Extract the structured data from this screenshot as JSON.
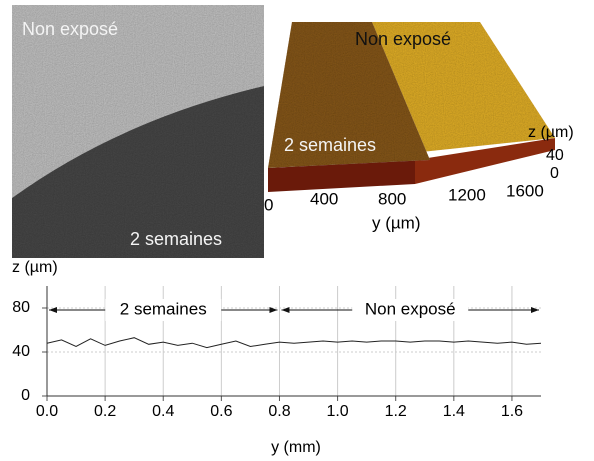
{
  "images": [
    {
      "labels": [
        "Non exposé",
        "2 semaines"
      ]
    },
    {
      "labels": [
        "Non exposé",
        "2 semaines"
      ],
      "z_label": "z (µm)",
      "z_ticks": [
        "40",
        "0"
      ],
      "y_label": "y (µm)",
      "y_ticks": [
        "0",
        "400",
        "800",
        "1200",
        "1600"
      ]
    }
  ],
  "chart_data": {
    "type": "line",
    "ylabel": "z (µm)",
    "xlabel": "y (mm)",
    "xlim": [
      0,
      1.7
    ],
    "ylim": [
      0,
      100
    ],
    "xticks": [
      {
        "value": 0,
        "label": "0.0"
      },
      0.2,
      0.4,
      0.6,
      0.8,
      {
        "value": 1,
        "label": "1.0"
      },
      1.2,
      1.4,
      1.6
    ],
    "yticks": [
      0,
      40,
      80
    ],
    "grid": true,
    "annotations": [
      {
        "text": "2 semaines",
        "range": [
          0,
          0.8
        ]
      },
      {
        "text": "Non exposé",
        "range": [
          0.8,
          1.7
        ]
      }
    ],
    "series": [
      {
        "color": "#222222",
        "x": [
          0,
          0.05,
          0.1,
          0.15,
          0.2,
          0.25,
          0.3,
          0.35,
          0.4,
          0.45,
          0.5,
          0.55,
          0.6,
          0.65,
          0.7,
          0.75,
          0.8,
          0.85,
          0.9,
          0.95,
          1,
          1.05,
          1.1,
          1.15,
          1.2,
          1.25,
          1.3,
          1.35,
          1.4,
          1.45,
          1.5,
          1.55,
          1.6,
          1.65,
          1.7
        ],
        "values": [
          48,
          51,
          45,
          52,
          46,
          50,
          53,
          47,
          49,
          46,
          48,
          44,
          47,
          50,
          45,
          47,
          49,
          48,
          49,
          50,
          49,
          50,
          49,
          50,
          50,
          49,
          50,
          50,
          49,
          50,
          49,
          48,
          49,
          47,
          48
        ]
      }
    ]
  }
}
